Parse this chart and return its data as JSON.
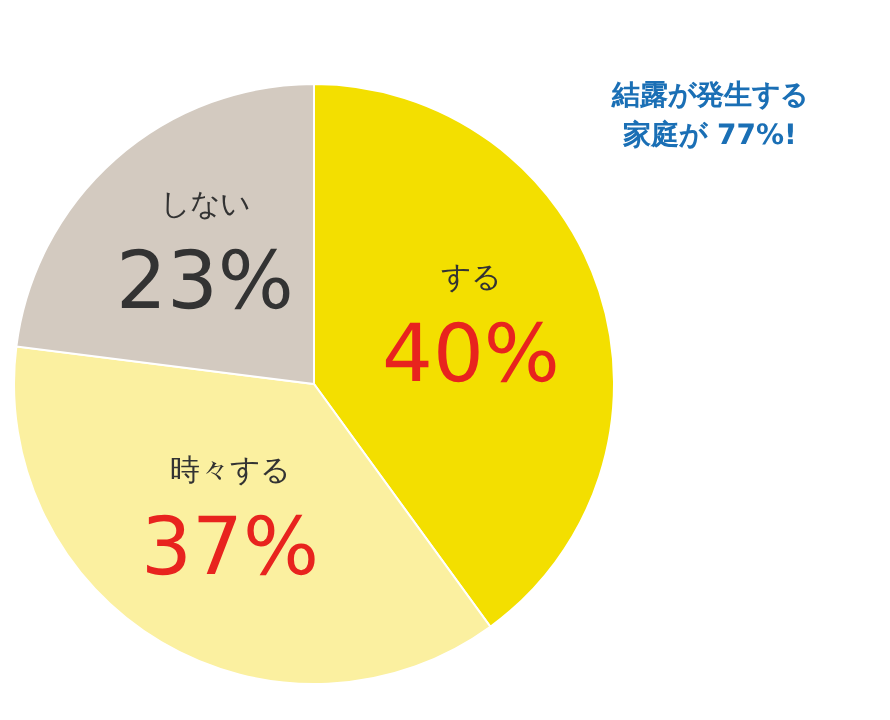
{
  "chart_data": {
    "type": "pie",
    "categories": [
      "する",
      "時々する",
      "しない"
    ],
    "values": [
      40,
      37,
      23
    ],
    "colors": [
      "#f3df00",
      "#fbf0a0",
      "#d3cac0"
    ],
    "value_labels": [
      "40%",
      "37%",
      "23%"
    ],
    "annotations": [
      "結露が発生する",
      "家庭が 77%!"
    ]
  }
}
